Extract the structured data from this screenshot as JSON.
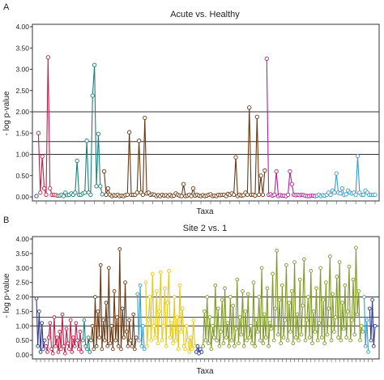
{
  "chart_data": [
    {
      "type": "line",
      "panel_label": "A",
      "title": "Acute vs. Healthy",
      "xlabel": "Taxa",
      "ylabel": "- log p-value",
      "ylim": [
        0,
        4.0
      ],
      "yticks": [
        "0.00",
        "0.50",
        "1.00",
        "1.50",
        "2.00",
        "2.50",
        "3.00",
        "3.50",
        "4.00"
      ],
      "reference_lines": [
        1.0,
        1.3,
        2.0
      ],
      "grid": false,
      "x_tick_labels_shown": false,
      "series": [
        {
          "color": "#2f3b8c",
          "values": [
            0.02
          ]
        },
        {
          "color": "#c0204a",
          "values": [
            1.5,
            0.1,
            0.95,
            0.2,
            0.05,
            3.28,
            0.2,
            0.05,
            0.05,
            0.04,
            0.03
          ]
        },
        {
          "color": "#1f7f7a",
          "values": [
            0.03,
            0.05,
            0.02,
            0.1,
            0.04,
            0.05,
            0.08,
            0.05,
            0.1,
            0.85,
            0.05,
            0.05,
            0.08,
            0.1,
            1.32,
            0.1,
            0.05,
            2.38,
            3.1,
            0.25,
            1.48,
            0.25,
            0.06
          ]
        },
        {
          "color": "#6b3a14",
          "values": [
            0.6,
            0.05,
            0.2,
            0.05,
            0.02,
            0.04,
            0.03,
            0.05,
            0.02,
            0.03,
            0.02,
            0.04,
            0.05,
            1.52,
            0.05,
            0.05,
            0.05,
            0.1,
            1.32,
            0.1,
            0.05,
            1.86,
            0.08,
            0.1,
            0.05,
            0.06,
            0.05,
            0.02,
            0.04,
            0.02,
            0.05,
            0.03,
            0.04,
            0.02,
            0.05,
            0.02,
            0.03,
            0.08,
            0.05,
            0.03,
            0.02,
            0.3,
            0.02,
            0.03,
            0.05,
            0.02,
            0.2,
            0.03,
            0.05,
            0.03,
            0.02,
            0.04,
            0.02,
            0.03,
            0.05,
            0.06,
            0.02,
            0.03,
            0.02,
            0.05,
            0.04,
            0.05,
            0.05,
            0.02,
            0.07,
            0.05,
            0.08,
            0.05,
            0.93,
            0.02,
            0.05,
            0.03,
            0.04,
            0.1,
            0.05,
            2.1,
            0.05,
            0.05,
            0.03,
            1.88,
            0.05,
            0.5,
            0.05,
            0.62
          ]
        },
        {
          "color": "#b3209a",
          "values": [
            3.25,
            0.05,
            0.06,
            0.03,
            0.05,
            0.6,
            0.02,
            0.04,
            0.03,
            0.03,
            0.02,
            0.05,
            0.6,
            0.3,
            0.05,
            0.04,
            0.05,
            0.04,
            0.05,
            0.04,
            0.03,
            0.02,
            0.02,
            0.03,
            0.03,
            0.02
          ]
        },
        {
          "color": "#3a9cc8",
          "values": [
            0.03,
            0.05,
            0.02,
            0.04,
            0.03,
            0.05,
            0.1,
            0.05,
            0.15,
            0.1,
            0.55,
            0.1,
            0.08,
            0.2,
            0.05,
            0.06,
            0.15,
            0.1,
            0.08,
            0.1,
            0.05,
            0.96,
            0.1,
            0.05,
            0.05,
            0.15,
            0.1,
            0.05,
            0.05,
            0.05,
            0.05
          ]
        }
      ]
    },
    {
      "type": "line",
      "panel_label": "B",
      "title": "Site 2 vs. 1",
      "xlabel": "Taxa",
      "ylabel": "- log p-value",
      "ylim": [
        0,
        4.0
      ],
      "yticks": [
        "0.00",
        "0.50",
        "1.00",
        "1.50",
        "2.00",
        "2.50",
        "3.00",
        "3.50",
        "4.00"
      ],
      "reference_lines": [
        1.0,
        1.3,
        2.0
      ],
      "grid": false,
      "x_tick_labels_shown": false,
      "series": [
        {
          "color": "#2f3b8c",
          "values": [
            1.95,
            0.3,
            1.5,
            0.1,
            1.1,
            0.2,
            0.5
          ]
        },
        {
          "color": "#c0204a",
          "values": [
            0.3,
            0.1,
            0.6,
            1.1,
            0.2,
            0.05,
            1.3,
            0.3,
            0.6,
            0.1,
            0.8,
            0.2,
            1.4,
            0.3,
            0.05,
            0.9,
            0.4,
            0.2,
            1.2,
            0.1,
            0.6,
            0.3,
            1.1,
            0.5,
            0.2,
            0.8,
            0.1
          ]
        },
        {
          "color": "#1f7f7a",
          "values": [
            0.5,
            1.2,
            0.3,
            0.2,
            0.6,
            0.1
          ]
        },
        {
          "color": "#6b3a14",
          "values": [
            0.5,
            1.0,
            0.2,
            2.0,
            0.3,
            1.5,
            0.6,
            3.1,
            0.2,
            1.2,
            0.5,
            1.8,
            0.3,
            3.0,
            0.4,
            1.0,
            0.2,
            2.2,
            0.5,
            1.3,
            0.3,
            3.65,
            0.2,
            1.6,
            0.6,
            2.5,
            0.8,
            0.3,
            1.2,
            0.5,
            0.3,
            1.4,
            0.2,
            0.6
          ]
        },
        {
          "color": "#3a9cc8",
          "values": [
            2.1,
            0.5,
            2.4,
            0.3,
            1.0,
            0.2
          ]
        },
        {
          "color": "#e6c817",
          "values": [
            2.5,
            0.3,
            1.2,
            2.0,
            0.5,
            2.8,
            1.0,
            0.6,
            2.2,
            0.4,
            1.5,
            2.85,
            0.5,
            1.0,
            2.3,
            0.3,
            1.8,
            2.9,
            0.6,
            1.1,
            0.4,
            2.0,
            0.5,
            1.3,
            0.2,
            2.4,
            0.8,
            1.6,
            0.3,
            0.2,
            1.0,
            0.5,
            0.1,
            0.6,
            0.2,
            1.2,
            0.3
          ]
        },
        {
          "color": "#2f3b8c",
          "values": [
            0.1,
            0.3,
            0.05,
            0.2,
            0.1
          ]
        },
        {
          "color": "#7f9a2a",
          "values": [
            0.3,
            1.5,
            0.5,
            2.0,
            0.4,
            1.3,
            0.2,
            1.0,
            0.6,
            2.4,
            0.5,
            1.6,
            0.3,
            0.8,
            1.9,
            0.4,
            2.3,
            0.6,
            1.1,
            0.3,
            2.0,
            0.5,
            1.7,
            0.3,
            0.9,
            2.6,
            0.4,
            1.3,
            0.7,
            2.2,
            0.3,
            1.5,
            0.5,
            2.1,
            0.6,
            1.0,
            0.4,
            2.5,
            0.3,
            1.2,
            0.8,
            2.0,
            0.5,
            3.0,
            0.4,
            1.4,
            0.6,
            2.3,
            0.3,
            1.1,
            0.9,
            2.8,
            0.5,
            1.6,
            3.6,
            0.7,
            1.9,
            0.4,
            2.4,
            0.6,
            1.2,
            3.1,
            0.5,
            1.8,
            0.8,
            2.2,
            0.4,
            3.2,
            0.6,
            1.4,
            0.5,
            2.6,
            0.7,
            1.7,
            3.3,
            0.5,
            1.2,
            2.0,
            0.6,
            2.9,
            0.4,
            1.5,
            0.8,
            2.3,
            0.5,
            1.1,
            3.0,
            0.6,
            1.9,
            0.4,
            2.5,
            0.7,
            1.6,
            3.4,
            0.5,
            2.1,
            0.8,
            1.3,
            2.7,
            0.6,
            3.2,
            0.5,
            1.8,
            0.9,
            2.4,
            0.6,
            1.5,
            3.05,
            0.5,
            1.2,
            2.6,
            0.7,
            3.7,
            1.4,
            2.2,
            0.5,
            1.0,
            0.8
          ]
        },
        {
          "color": "#3a9cc8",
          "values": [
            2.0,
            0.3,
            1.2,
            0.1
          ]
        },
        {
          "color": "#2f3b8c",
          "values": [
            1.6,
            0.5,
            1.9,
            0.3,
            1.0
          ]
        }
      ]
    }
  ]
}
